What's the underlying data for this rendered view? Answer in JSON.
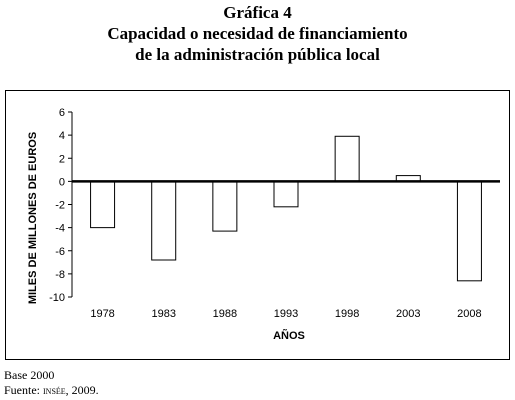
{
  "header": {
    "line1": "Gráfica 4",
    "line2": "Capacidad o  necesidad de financiamiento",
    "line3": "de la administración pública local"
  },
  "chart_data": {
    "type": "bar",
    "categories": [
      "1978",
      "1983",
      "1988",
      "1993",
      "1998",
      "2003",
      "2008"
    ],
    "values": [
      -4.0,
      -6.8,
      -4.3,
      -2.2,
      3.9,
      0.5,
      -8.6
    ],
    "xlabel": "AÑOS",
    "ylabel": "MILES DE MILLONES DE EUROS",
    "ylim": [
      -10,
      6
    ],
    "yticks": [
      "6",
      "4",
      "2",
      "0",
      "-2",
      "-4",
      "-6",
      "-8",
      "-10"
    ],
    "grid": false,
    "bar_fill": "#ffffff",
    "bar_stroke": "#000000"
  },
  "footer": {
    "base": "Base 2000",
    "source_prefix": "Fuente: ",
    "source_name": "insée",
    "source_suffix": ", 2009."
  }
}
